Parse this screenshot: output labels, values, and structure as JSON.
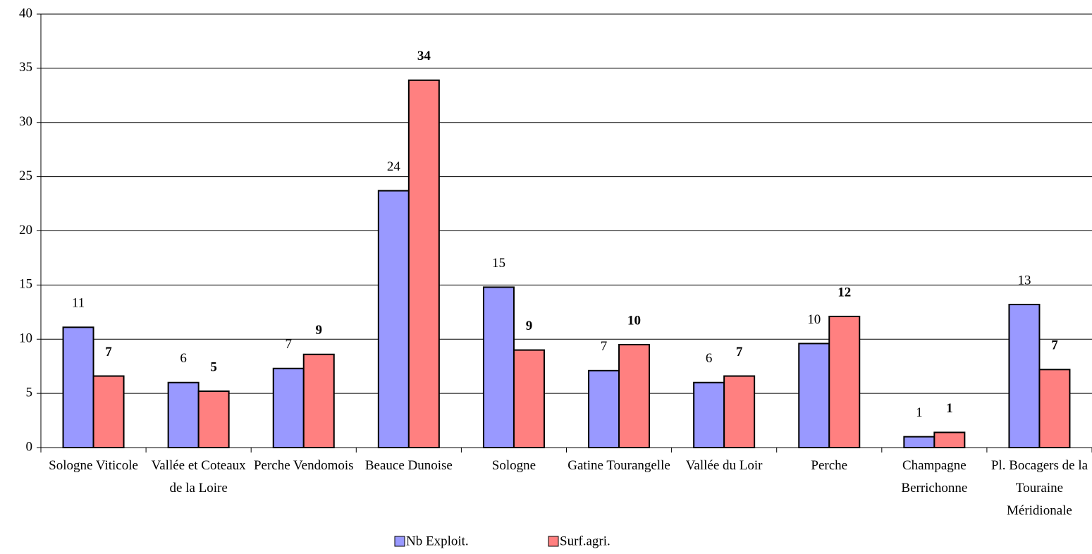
{
  "chart_data": {
    "type": "bar",
    "categories": [
      "Sologne Viticole",
      "Vallée et Coteaux de la Loire",
      "Perche Vendomois",
      "Beauce Dunoise",
      "Sologne",
      "Gatine Tourangelle",
      "Vallée du Loir",
      "Perche",
      "Champagne Berrichonne",
      "Pl. Bocagers de la Touraine Méridionale"
    ],
    "series": [
      {
        "name": "Nb Exploit.",
        "color": "#9999ff",
        "values": [
          11.1,
          6.0,
          7.3,
          23.7,
          14.8,
          7.1,
          6.0,
          9.6,
          1.0,
          13.2
        ],
        "value_labels": [
          "11",
          "6",
          "7",
          "24",
          "15",
          "7",
          "6",
          "10",
          "1",
          "13"
        ]
      },
      {
        "name": "Surf.agri.",
        "color": "#ff8080",
        "values": [
          6.6,
          5.2,
          8.6,
          33.9,
          9.0,
          9.5,
          6.6,
          12.1,
          1.4,
          7.2
        ],
        "value_labels": [
          "7",
          "5",
          "9",
          "34",
          "9",
          "10",
          "7",
          "12",
          "1",
          "7"
        ]
      }
    ],
    "ylim": [
      0,
      40
    ],
    "yticks": [
      0,
      5,
      10,
      15,
      20,
      25,
      30,
      35,
      40
    ],
    "grid": true,
    "legend": "bottom"
  }
}
